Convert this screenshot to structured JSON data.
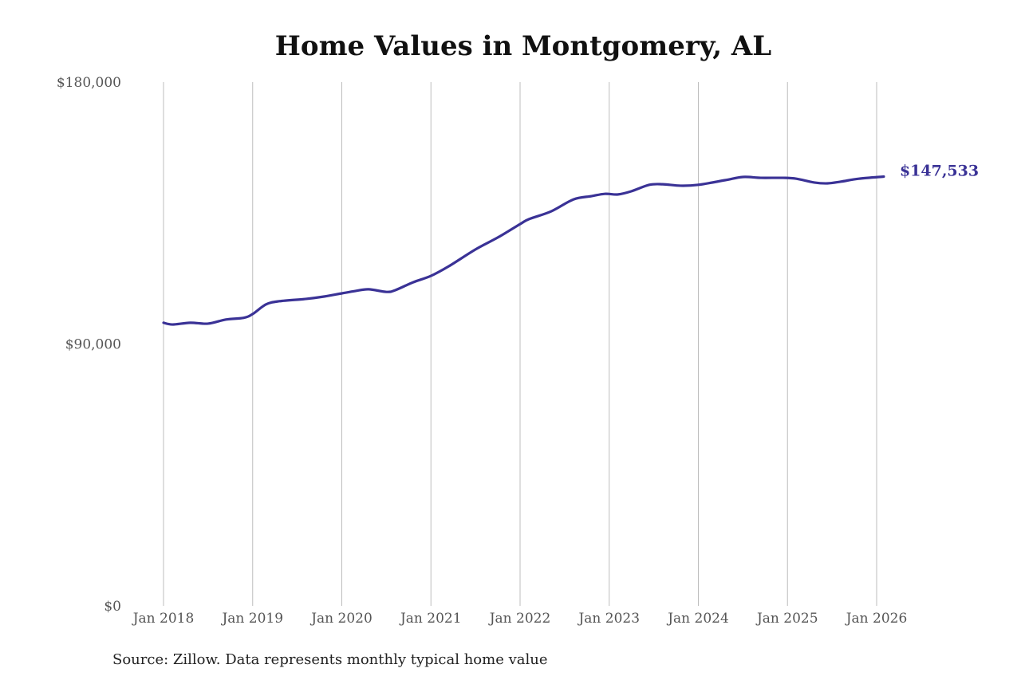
{
  "chart_data": {
    "type": "line",
    "title": "Home Values in Montgomery, AL",
    "source": "Source: Zillow. Data represents monthly typical home value",
    "xlabel": "",
    "ylabel": "",
    "ylim": [
      0,
      180000
    ],
    "xlim": [
      2018.0,
      2026.08
    ],
    "y_ticks": [
      0,
      90000,
      180000
    ],
    "y_tick_labels": [
      "$0",
      "$90,000",
      "$180,000"
    ],
    "x_ticks": [
      2018,
      2019,
      2020,
      2021,
      2022,
      2023,
      2024,
      2025,
      2026
    ],
    "x_tick_labels": [
      "Jan 2018",
      "Jan 2019",
      "Jan 2020",
      "Jan 2021",
      "Jan 2022",
      "Jan 2023",
      "Jan 2024",
      "Jan 2025",
      "Jan 2026"
    ],
    "grid": "vertical",
    "end_label": "$147,533",
    "line_color": "#3a3296",
    "series": [
      {
        "name": "Typical home value",
        "x": [
          2018.0,
          2018.1,
          2018.3,
          2018.5,
          2018.7,
          2018.9,
          2019.0,
          2019.15,
          2019.3,
          2019.6,
          2019.8,
          2020.0,
          2020.15,
          2020.3,
          2020.5,
          2020.6,
          2020.8,
          2021.0,
          2021.2,
          2021.5,
          2021.75,
          2022.0,
          2022.1,
          2022.35,
          2022.6,
          2022.8,
          2022.95,
          2023.1,
          2023.25,
          2023.45,
          2023.6,
          2023.8,
          2024.0,
          2024.3,
          2024.5,
          2024.7,
          2024.95,
          2025.1,
          2025.3,
          2025.45,
          2025.6,
          2025.8,
          2026.08
        ],
        "values": [
          97300,
          96700,
          97300,
          97000,
          98400,
          99000,
          100300,
          103600,
          104700,
          105500,
          106300,
          107400,
          108200,
          108800,
          107900,
          108500,
          111200,
          113400,
          116700,
          122500,
          126600,
          131200,
          132900,
          135600,
          139700,
          140800,
          141600,
          141400,
          142500,
          144700,
          144900,
          144400,
          144700,
          146300,
          147400,
          147100,
          147100,
          146800,
          145500,
          145200,
          145800,
          146800,
          147533
        ]
      }
    ]
  }
}
